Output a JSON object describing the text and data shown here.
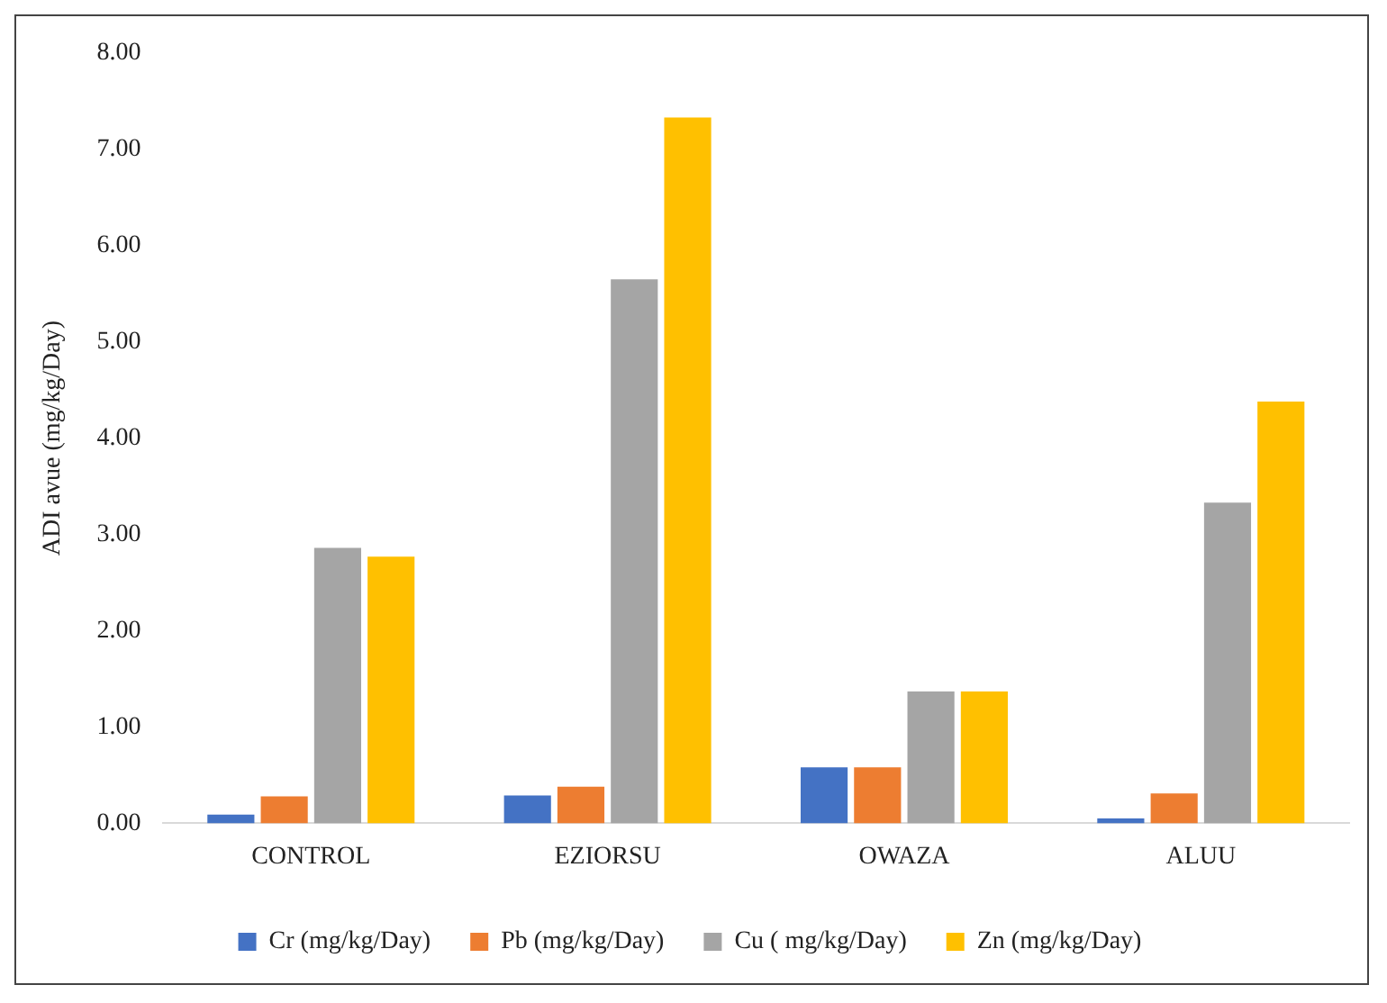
{
  "chart_data": {
    "type": "bar",
    "ylabel": "ADI avue (mg/kg/Day)",
    "categories": [
      "CONTROL",
      "EZIORSU",
      "OWAZA",
      "ALUU"
    ],
    "series": [
      {
        "name": "Cr (mg/kg/Day)",
        "color": "#4472c4",
        "values": [
          0.09,
          0.29,
          0.58,
          0.05
        ]
      },
      {
        "name": "Pb (mg/kg/Day)",
        "color": "#ed7d31",
        "values": [
          0.28,
          0.38,
          0.58,
          0.31
        ]
      },
      {
        "name": "Cu ( mg/kg/Day)",
        "color": "#a5a5a5",
        "values": [
          2.86,
          5.65,
          1.37,
          3.33
        ]
      },
      {
        "name": "Zn (mg/kg/Day)",
        "color": "#ffc000",
        "values": [
          2.77,
          7.33,
          1.37,
          4.38
        ]
      }
    ],
    "ylim": [
      0,
      8
    ],
    "yticks": [
      {
        "value": 0,
        "label": "0.00"
      },
      {
        "value": 1,
        "label": "1.00"
      },
      {
        "value": 2,
        "label": "2.00"
      },
      {
        "value": 3,
        "label": "3.00"
      },
      {
        "value": 4,
        "label": "4.00"
      },
      {
        "value": 5,
        "label": "5.00"
      },
      {
        "value": 6,
        "label": "6.00"
      },
      {
        "value": 7,
        "label": "7.00"
      },
      {
        "value": 8,
        "label": "8.00"
      }
    ],
    "grid": false,
    "legend": "bottom"
  }
}
